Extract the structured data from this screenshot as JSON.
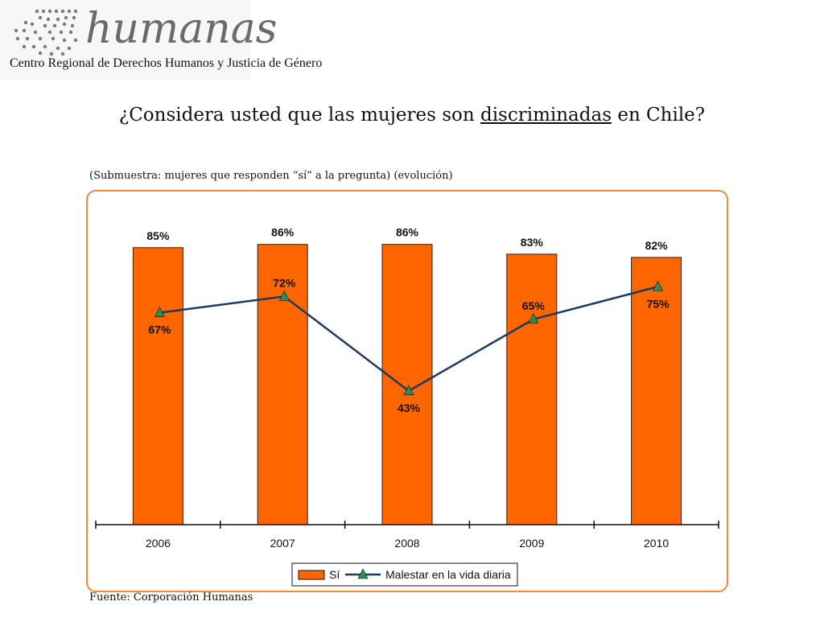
{
  "logo": {
    "name": "humanas",
    "subtitle": "Centro Regional de Derechos Humanos y Justicia de Género"
  },
  "title": {
    "before": "¿Considera usted que las mujeres son ",
    "underlined": "discriminadas",
    "after": " en Chile?"
  },
  "subtitle": "(Submuestra: mujeres que responden “sí” a la pregunta) (evolución)",
  "source": "Fuente: Corporación Humanas",
  "colors": {
    "bar": "#ff6600",
    "bar_stroke": "#222222",
    "line": "#1f3a5f",
    "marker": "#2e8b57",
    "frame": "#f08a3c"
  },
  "chart_data": {
    "type": "bar",
    "categories": [
      "2006",
      "2007",
      "2008",
      "2009",
      "2010"
    ],
    "series": [
      {
        "name": "Sí",
        "type": "bar",
        "values": [
          85,
          86,
          86,
          83,
          82
        ],
        "labels": [
          "85%",
          "86%",
          "86%",
          "83%",
          "82%"
        ]
      },
      {
        "name": "Malestar en la vida diaria",
        "type": "line",
        "values": [
          67,
          72,
          43,
          65,
          75
        ],
        "labels": [
          "67%",
          "72%",
          "43%",
          "65%",
          "75%"
        ]
      }
    ],
    "ylim": [
      0,
      100
    ],
    "grid": false,
    "legend": "bottom"
  }
}
